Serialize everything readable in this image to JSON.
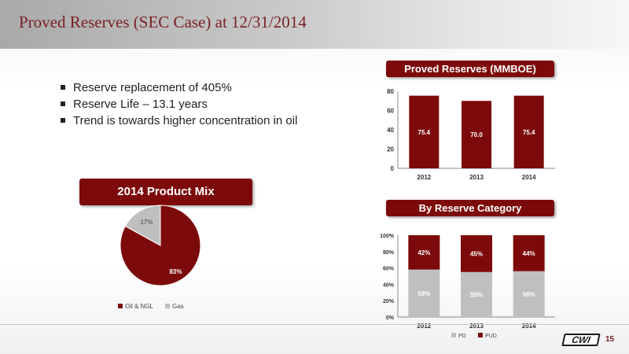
{
  "header": {
    "title": "Proved Reserves (SEC Case) at 12/31/2014"
  },
  "bullets": [
    "Reserve replacement of 405%",
    "Reserve Life – 13.1 years",
    "Trend is towards higher concentration in oil"
  ],
  "footer": {
    "logo_text": "CWI",
    "page_number": "15"
  },
  "colors": {
    "maroon": "#7d0a0a",
    "gray": "#bfbfbf"
  },
  "chart_data": [
    {
      "type": "bar",
      "title": "Proved Reserves (MMBOE)",
      "categories": [
        "2012",
        "2013",
        "2014"
      ],
      "values": [
        75.4,
        70.0,
        75.4
      ],
      "value_labels": [
        "75.4",
        "70.0",
        "75.4"
      ],
      "ylim": [
        0,
        80
      ],
      "yticks": [
        "0",
        "20",
        "40",
        "60",
        "80"
      ],
      "color": "#7d0a0a"
    },
    {
      "type": "bar",
      "stacked": true,
      "title": "By Reserve Category",
      "categories": [
        "2012",
        "2013",
        "2014"
      ],
      "series": [
        {
          "name": "PD",
          "values": [
            58,
            55,
            56
          ],
          "labels": [
            "58%",
            "55%",
            "56%"
          ],
          "color": "#bfbfbf"
        },
        {
          "name": "PUD",
          "values": [
            42,
            45,
            44
          ],
          "labels": [
            "42%",
            "45%",
            "44%"
          ],
          "color": "#7d0a0a"
        }
      ],
      "ylim": [
        0,
        100
      ],
      "yticks": [
        "0%",
        "20%",
        "40%",
        "60%",
        "80%",
        "100%"
      ],
      "legend": "bottom"
    },
    {
      "type": "pie",
      "title": "2014 Product Mix",
      "slices": [
        {
          "name": "Oil & NGL",
          "value": 83,
          "label": "83%",
          "color": "#7d0a0a"
        },
        {
          "name": "Gas",
          "value": 17,
          "label": "17%",
          "color": "#bfbfbf"
        }
      ],
      "legend": "bottom"
    }
  ]
}
